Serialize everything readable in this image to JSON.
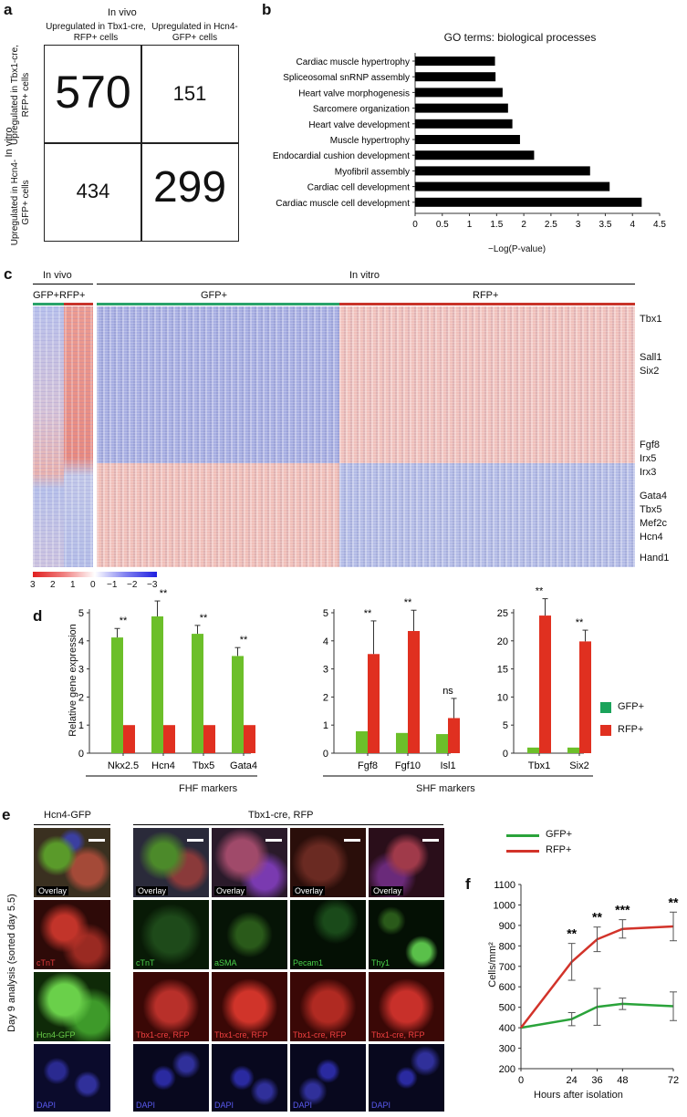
{
  "panels": {
    "a": "a",
    "b": "b",
    "c": "c",
    "d": "d",
    "e": "e",
    "f": "f"
  },
  "panel_a": {
    "top_label": "In vivo",
    "side_label": "In vitro",
    "col_headers": [
      "Upregulated in Tbx1-cre, RFP+ cells",
      "Upregulated in Hcn4-GFP+ cells"
    ],
    "row_headers": [
      "Upregulated in Tbx1-cre, RFP+ cells",
      "Upregulated in Hcn4-GFP+ cells"
    ],
    "cells": [
      "570",
      "151",
      "434",
      "299"
    ]
  },
  "panel_b": {
    "title": "GO terms: biological processes",
    "xlabel": "−Log(P-value)",
    "xticks": [
      "0",
      "0.5",
      "1",
      "1.5",
      "2",
      "2.5",
      "3",
      "3.5",
      "4",
      "4.5"
    ]
  },
  "panel_c": {
    "in_vivo": "In vivo",
    "in_vitro": "In vitro",
    "gfp_rfp": "GFP+RFP+",
    "gfp": "GFP+",
    "rfp": "RFP+",
    "genes": [
      "Tbx1",
      "Sall1",
      "Six2",
      "Fgf8",
      "Irx5",
      "Irx3",
      "Gata4",
      "Tbx5",
      "Mef2c",
      "Hcn4",
      "Hand1"
    ],
    "scale_ticks": [
      "3",
      "2",
      "1",
      "0",
      "−1",
      "−2",
      "−3"
    ]
  },
  "panel_d": {
    "ylabel": "Relative gene expression",
    "group_labels": [
      "FHF markers",
      "SHF markers"
    ],
    "legend": [
      "GFP+",
      "RFP+"
    ],
    "colors": {
      "gfp": "#6cbf2a",
      "rfp": "#e03020"
    }
  },
  "panel_e": {
    "left_header": "Hcn4-GFP",
    "right_header": "Tbx1-cre, RFP",
    "side_label": "Day 9 analysis (sorted day 5.5)",
    "overlay": "Overlay",
    "col1": [
      "cTnT",
      "Hcn4-GFP",
      "DAPI"
    ],
    "row2": [
      "cTnT",
      "aSMA",
      "Pecam1",
      "Thy1"
    ],
    "row3": "Tbx1-cre, RFP",
    "dapi": "DAPI"
  },
  "panel_f": {
    "legend": [
      "GFP+",
      "RFP+"
    ],
    "ylabel": "Cells/mm²",
    "xlabel": "Hours after isolation"
  },
  "chart_data": [
    {
      "type": "bar",
      "title": "GO terms: biological processes",
      "xlabel": "−Log(P-value)",
      "xlim": [
        0,
        4.5
      ],
      "categories": [
        "Cardiac muscle hypertrophy",
        "Spliceosomal snRNP assembly",
        "Heart valve morphogenesis",
        "Sarcomere organization",
        "Heart valve development",
        "Muscle hypertrophy",
        "Endocardial cushion development",
        "Myofibril assembly",
        "Cardiac cell development",
        "Cardiac muscle cell development"
      ],
      "values": [
        1.47,
        1.48,
        1.61,
        1.71,
        1.79,
        1.93,
        2.19,
        3.22,
        3.58,
        4.17
      ]
    },
    {
      "type": "bar",
      "ylabel": "Relative gene expression",
      "ylim": [
        0,
        5
      ],
      "categories": [
        "Nkx2.5",
        "Hcn4",
        "Tbx5",
        "Gata4"
      ],
      "series": [
        {
          "name": "GFP+",
          "values": [
            4.12,
            4.87,
            4.25,
            3.46
          ],
          "err": [
            0.32,
            0.55,
            0.3,
            0.3
          ]
        },
        {
          "name": "RFP+",
          "values": [
            1,
            1,
            1,
            1
          ]
        }
      ],
      "sig": [
        "**",
        "**",
        "**",
        "**"
      ],
      "group": "FHF markers"
    },
    {
      "type": "bar",
      "ylim": [
        0,
        5
      ],
      "categories": [
        "Fgf8",
        "Fgf10",
        "Isl1"
      ],
      "series": [
        {
          "name": "GFP+",
          "values": [
            0.78,
            0.72,
            0.68
          ]
        },
        {
          "name": "RFP+",
          "values": [
            3.53,
            4.35,
            1.25
          ],
          "err": [
            1.18,
            0.74,
            0.7
          ]
        }
      ],
      "sig": [
        "**",
        "**",
        "ns"
      ],
      "group": "SHF markers"
    },
    {
      "type": "bar",
      "ylim": [
        0,
        25
      ],
      "categories": [
        "Tbx1",
        "Six2"
      ],
      "series": [
        {
          "name": "GFP+",
          "values": [
            1,
            1
          ]
        },
        {
          "name": "RFP+",
          "values": [
            24.5,
            19.9
          ],
          "err": [
            3.0,
            2.0
          ]
        }
      ],
      "sig": [
        "**",
        "**"
      ]
    },
    {
      "type": "line",
      "ylabel": "Cells/mm²",
      "xlabel": "Hours after isolation",
      "x": [
        0,
        24,
        36,
        48,
        72
      ],
      "xlim": [
        0,
        72
      ],
      "ylim": [
        200,
        1100
      ],
      "series": [
        {
          "name": "GFP+",
          "color": "#2aa33a",
          "values": [
            400,
            442,
            502,
            517,
            505
          ],
          "err": [
            0,
            32,
            90,
            28,
            70
          ]
        },
        {
          "name": "RFP+",
          "color": "#d2332a",
          "values": [
            400,
            722,
            832,
            883,
            895
          ],
          "err": [
            0,
            90,
            60,
            45,
            70
          ]
        }
      ],
      "sig": [
        "",
        "**",
        "**",
        "***",
        "**"
      ]
    }
  ]
}
